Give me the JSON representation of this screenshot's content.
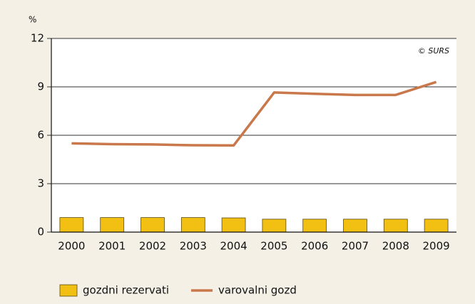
{
  "chart_data": {
    "type": "bar",
    "y_label": "%",
    "annotation": "© SURS",
    "categories": [
      "2000",
      "2001",
      "2002",
      "2003",
      "2004",
      "2005",
      "2006",
      "2007",
      "2008",
      "2009"
    ],
    "series": [
      {
        "name": "gozdni rezervati",
        "type": "bar",
        "color": "#f2c012",
        "values": [
          0.9,
          0.9,
          0.9,
          0.9,
          0.88,
          0.8,
          0.8,
          0.8,
          0.8,
          0.8
        ]
      },
      {
        "name": "varovalni gozd",
        "type": "line",
        "color": "#c8784a",
        "values": [
          5.5,
          5.45,
          5.43,
          5.38,
          5.37,
          8.65,
          8.57,
          8.5,
          8.5,
          9.3
        ]
      }
    ],
    "ylim": [
      0,
      12
    ],
    "yticks": [
      0,
      3,
      6,
      9,
      12
    ],
    "grid": true
  }
}
